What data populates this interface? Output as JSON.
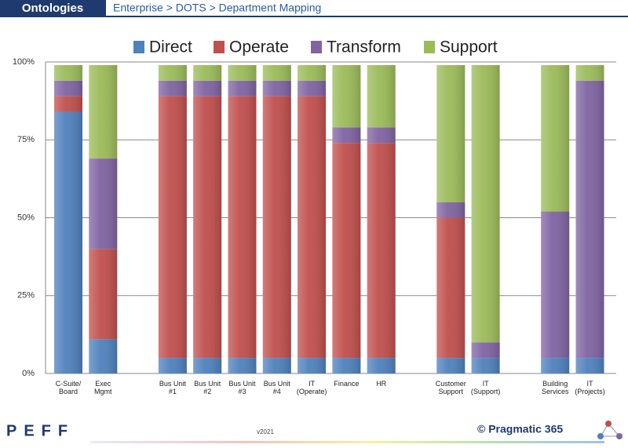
{
  "header": {
    "section": "Ontologies",
    "breadcrumb": "Enterprise > DOTS > Department Mapping"
  },
  "chart_data": {
    "type": "stacked_bar",
    "categories": [
      "C-Suite/\nBoard",
      "Exec\nMgmt",
      "Bus Unit\n#1",
      "Bus Unit\n#2",
      "Bus Unit\n#3",
      "Bus Unit\n#4",
      "IT\n(Operate)",
      "Finance",
      "HR",
      "Customer\nSupport",
      "IT\n(Support)",
      "Building\nServices",
      "IT\n(Projects)"
    ],
    "series": [
      {
        "name": "Direct",
        "color": "#4f81bd",
        "values": [
          84,
          11,
          5,
          5,
          5,
          5,
          5,
          5,
          5,
          5,
          5,
          5,
          5
        ]
      },
      {
        "name": "Operate",
        "color": "#c0504d",
        "values": [
          5,
          29,
          84,
          84,
          84,
          84,
          84,
          69,
          69,
          45,
          0,
          0,
          0
        ]
      },
      {
        "name": "Transform",
        "color": "#8064a2",
        "values": [
          5,
          29,
          5,
          5,
          5,
          5,
          5,
          5,
          5,
          5,
          5,
          47,
          89
        ]
      },
      {
        "name": "Support",
        "color": "#9bbb59",
        "values": [
          5,
          30,
          5,
          5,
          5,
          5,
          5,
          20,
          20,
          44,
          89,
          47,
          5
        ]
      }
    ],
    "ylim": [
      0,
      100
    ],
    "yticks": [
      {
        "value": 0,
        "label": "0%"
      },
      {
        "value": 25,
        "label": "25%"
      },
      {
        "value": 50,
        "label": "50%"
      },
      {
        "value": 75,
        "label": "75%"
      },
      {
        "value": 100,
        "label": "100%"
      }
    ],
    "grid": true,
    "legend": "top"
  },
  "footer": {
    "logo": "PEFF",
    "version": "v2021",
    "brand": "© Pragmatic 365"
  }
}
